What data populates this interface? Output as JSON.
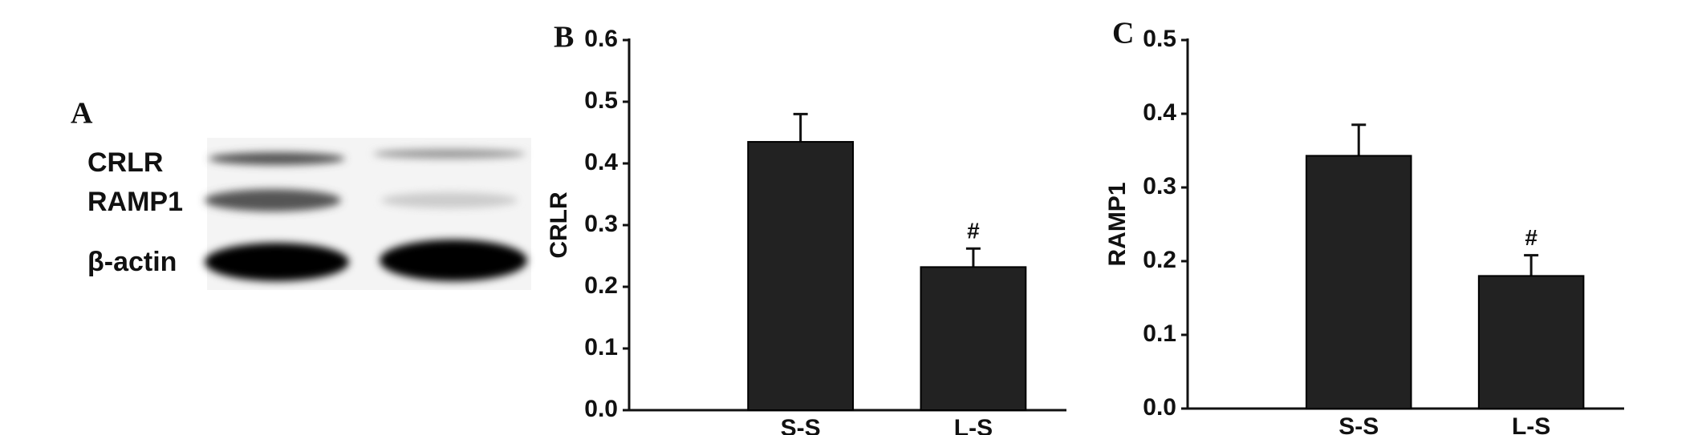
{
  "blot": {
    "panel_label": "A",
    "rows": [
      "CRLR",
      "RAMP1",
      "β-actin"
    ]
  },
  "chart_data": [
    {
      "type": "bar",
      "panel_label": "B",
      "y_label": "CRLR",
      "categories": [
        "S-S",
        "L-S"
      ],
      "values": [
        0.435,
        0.232
      ],
      "errors": [
        0.045,
        0.03
      ],
      "color": "#222222",
      "annotations": [
        {
          "category": "L-S",
          "text": "#"
        }
      ],
      "ylim": [
        0,
        0.6
      ],
      "yticks": [
        {
          "value": 0,
          "label": "0.0"
        },
        0.1,
        0.2,
        0.3,
        0.4,
        0.5,
        0.6
      ]
    },
    {
      "type": "bar",
      "panel_label": "C",
      "y_label": "RAMP1",
      "categories": [
        "S-S",
        "L-S"
      ],
      "values": [
        0.343,
        0.18
      ],
      "errors": [
        0.042,
        0.028
      ],
      "color": "#222222",
      "annotations": [
        {
          "category": "L-S",
          "text": "#"
        }
      ],
      "ylim": [
        0,
        0.5
      ],
      "yticks": [
        {
          "value": 0,
          "label": "0.0"
        },
        0.1,
        0.2,
        0.3,
        0.4,
        0.5
      ]
    }
  ]
}
